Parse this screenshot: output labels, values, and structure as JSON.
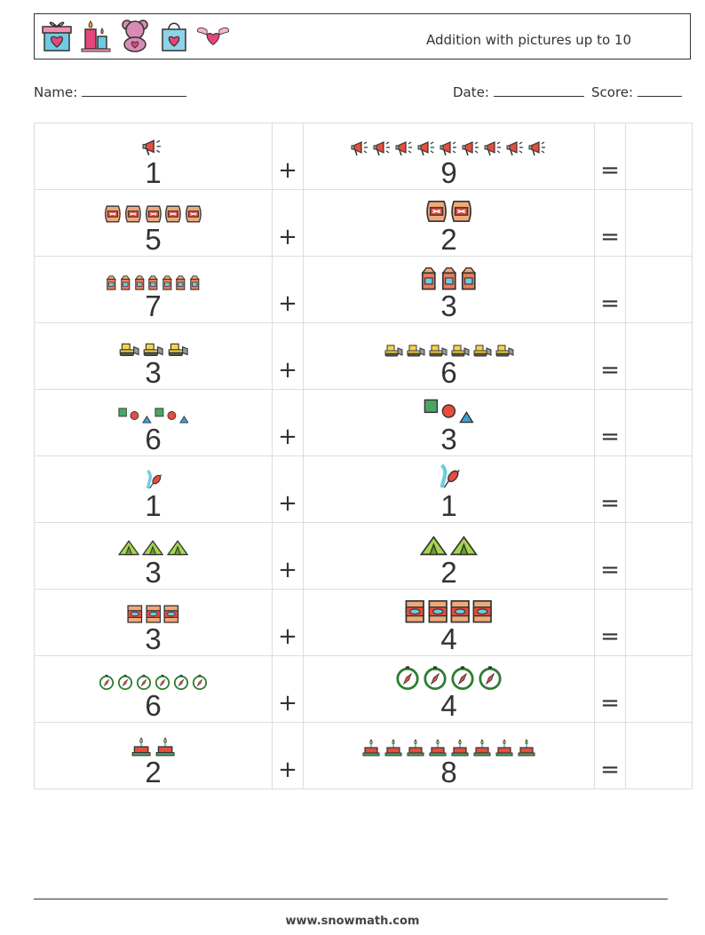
{
  "header": {
    "title": "Addition with pictures up to 10",
    "icons": [
      "gift-icon",
      "candles-icon",
      "teddy-bear-icon",
      "shopping-bag-icon",
      "winged-heart-icon"
    ]
  },
  "meta": {
    "name_label": "Name:",
    "date_label": "Date:",
    "score_label": "Score:"
  },
  "problems": [
    {
      "a": "1",
      "b": "9",
      "icon": "megaphone-icon"
    },
    {
      "a": "5",
      "b": "2",
      "icon": "barrel-icon"
    },
    {
      "a": "7",
      "b": "3",
      "icon": "milk-carton-icon"
    },
    {
      "a": "3",
      "b": "6",
      "icon": "bulldozer-icon"
    },
    {
      "a": "6",
      "b": "3",
      "icon": "shapes-icon"
    },
    {
      "a": "1",
      "b": "1",
      "icon": "juggling-club-icon"
    },
    {
      "a": "3",
      "b": "2",
      "icon": "tent-icon"
    },
    {
      "a": "3",
      "b": "4",
      "icon": "bag-icon"
    },
    {
      "a": "6",
      "b": "4",
      "icon": "compass-icon"
    },
    {
      "a": "2",
      "b": "8",
      "icon": "cake-icon"
    }
  ],
  "operators": {
    "plus": "+",
    "equals": "="
  },
  "footer": {
    "site": "www.snowmath.com"
  }
}
